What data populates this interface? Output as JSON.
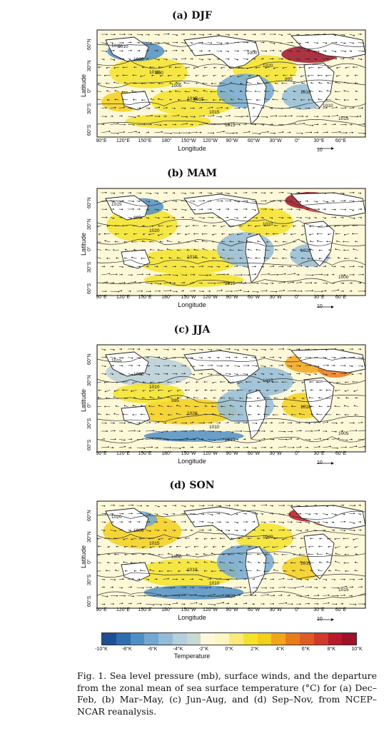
{
  "panels": [
    {
      "title": "(a) DJF",
      "scale": "10",
      "contours": [
        "1015",
        "1010",
        "1015",
        "1015",
        "1020",
        "1010",
        "1015",
        "1020",
        "1005",
        "1015",
        "1000",
        "995",
        "1010",
        "1010",
        "990",
        "1015"
      ]
    },
    {
      "title": "(b) MAM",
      "scale": "10",
      "contours": [
        "1015",
        "1020",
        "1010",
        "1015",
        "1010",
        "1020",
        "1000",
        "995"
      ]
    },
    {
      "title": "(c) JJA",
      "scale": "10",
      "contours": [
        "1015",
        "1010",
        "1020",
        "1015",
        "1015",
        "1010",
        "1005",
        "1000",
        "995",
        "1010"
      ]
    },
    {
      "title": "(d) SON",
      "scale": "10",
      "contours": [
        "1020",
        "1015",
        "1010",
        "1020",
        "1020",
        "1015",
        "1015",
        "1005",
        "1000",
        "1010"
      ]
    }
  ],
  "axes": {
    "ylabel": "Latitude",
    "yticks": [
      "60°N",
      "30°N",
      "0°",
      "30°S",
      "60°S"
    ],
    "xlabel": "Longitude",
    "xticks": [
      "90°E",
      "120°E",
      "150°E",
      "180°",
      "150°W",
      "120°W",
      "90°W",
      "60°W",
      "30°W",
      "0°",
      "30°E",
      "60°E"
    ]
  },
  "colorbar": {
    "title": "Temperature",
    "ticks": [
      "-10°K",
      "-8°K",
      "-6°K",
      "-4°K",
      "-2°K",
      "0°K",
      "2°K",
      "4°K",
      "6°K",
      "8°K",
      "10°K"
    ],
    "colors": [
      "#1f4e96",
      "#2f6cb0",
      "#4f8fc6",
      "#72a8d2",
      "#94bcd8",
      "#b6cfdc",
      "#c9d9d3",
      "#fdf8d8",
      "#fef6c2",
      "#fbe97a",
      "#f5e32a",
      "#f4cf1c",
      "#f2a51c",
      "#ea7a1e",
      "#e05a24",
      "#d03a2a",
      "#b8192c",
      "#9c1228"
    ]
  },
  "caption": "Fig. 1. Sea level pressure (mb), surface winds, and the departure from the zonal mean of sea surface temperature (°C) for (a) Dec–Feb, (b) Mar–May, (c) Jun–Aug, and (d) Sep–Nov, from NCEP–NCAR reanalysis."
}
